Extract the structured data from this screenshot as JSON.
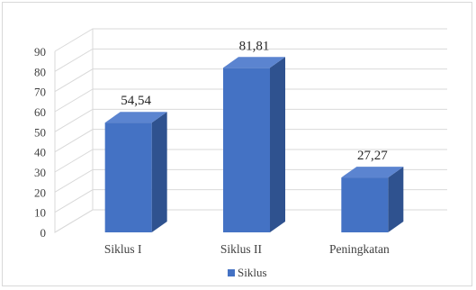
{
  "chart_data": {
    "type": "bar",
    "style": "3d-column",
    "title": "",
    "xlabel": "",
    "ylabel": "",
    "categories": [
      "Siklus I",
      "Siklus II",
      "Peningkatan"
    ],
    "series": [
      {
        "name": "Siklus",
        "values": [
          54.54,
          81.81,
          27.27
        ],
        "color": "#4472C4"
      }
    ],
    "data_labels": [
      "54,54",
      "81,81",
      "27,27"
    ],
    "yticks": [
      "0",
      "10",
      "20",
      "30",
      "40",
      "50",
      "60",
      "70",
      "80",
      "90"
    ],
    "ylim": [
      0,
      90
    ],
    "grid": true,
    "legend_position": "bottom"
  },
  "colors": {
    "bar_front": "#4472C4",
    "bar_side": "#2F528F",
    "bar_top": "#5B84D0",
    "gridline": "#d9d9d9"
  }
}
